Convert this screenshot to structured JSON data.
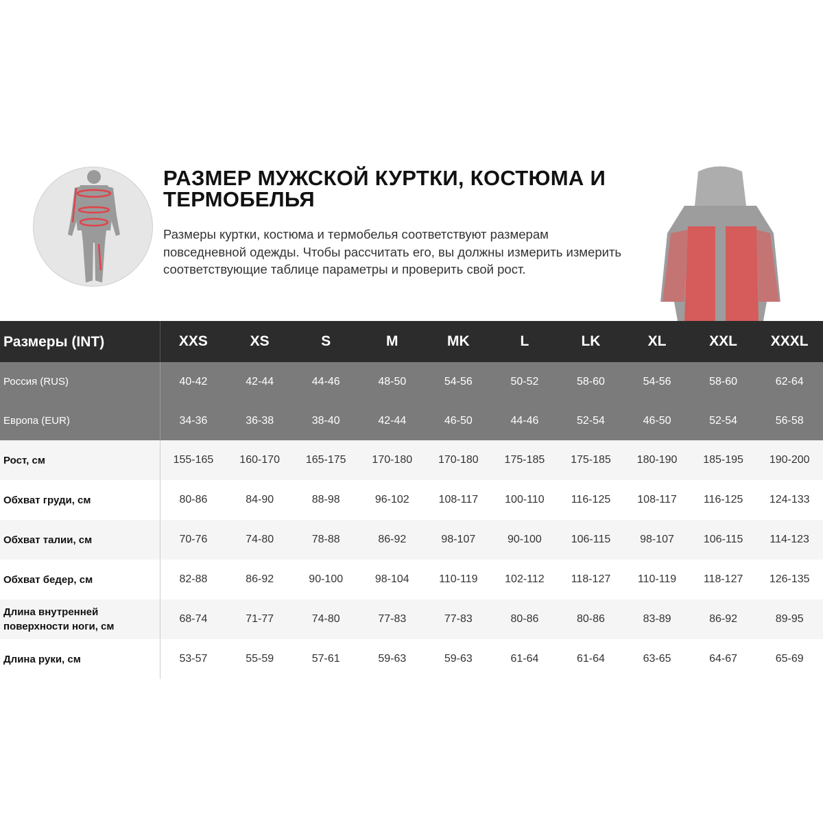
{
  "header": {
    "title": "РАЗМЕР МУЖСКОЙ КУРТКИ, КОСТЮМА И ТЕРМОБЕЛЬЯ",
    "description": "Размеры куртки, костюма и термобелья соответствуют размерам повседневной одежды. Чтобы рассчитать его, вы должны измерить измерить соответствующие таблице параметры и проверить свой рост."
  },
  "colors": {
    "header_bg": "#2c2c2c",
    "region_bg": "#7b7b7b",
    "accent": "#d9534f"
  },
  "table": {
    "corner": "Размеры (INT)",
    "sizes": [
      "XXS",
      "XS",
      "S",
      "M",
      "MK",
      "L",
      "LK",
      "XL",
      "XXL",
      "XXXL"
    ],
    "region_rows": [
      {
        "label": "Россия (RUS)",
        "values": [
          "40-42",
          "42-44",
          "44-46",
          "48-50",
          "54-56",
          "50-52",
          "58-60",
          "54-56",
          "58-60",
          "62-64"
        ]
      },
      {
        "label": "Европа (EUR)",
        "values": [
          "34-36",
          "36-38",
          "38-40",
          "42-44",
          "46-50",
          "44-46",
          "52-54",
          "46-50",
          "52-54",
          "56-58"
        ]
      }
    ],
    "rows": [
      {
        "label": "Рост, см",
        "values": [
          "155-165",
          "160-170",
          "165-175",
          "170-180",
          "170-180",
          "175-185",
          "175-185",
          "180-190",
          "185-195",
          "190-200"
        ]
      },
      {
        "label": "Обхват груди, см",
        "values": [
          "80-86",
          "84-90",
          "88-98",
          "96-102",
          "108-117",
          "100-110",
          "116-125",
          "108-117",
          "116-125",
          "124-133"
        ]
      },
      {
        "label": "Обхват талии, см",
        "values": [
          "70-76",
          "74-80",
          "78-88",
          "86-92",
          "98-107",
          "90-100",
          "106-115",
          "98-107",
          "106-115",
          "114-123"
        ]
      },
      {
        "label": "Обхват бедер, см",
        "values": [
          "82-88",
          "86-92",
          "90-100",
          "98-104",
          "110-119",
          "102-112",
          "118-127",
          "110-119",
          "118-127",
          "126-135"
        ]
      },
      {
        "label": "Длина внутренней поверхности ноги, см",
        "values": [
          "68-74",
          "71-77",
          "74-80",
          "77-83",
          "77-83",
          "80-86",
          "80-86",
          "83-89",
          "86-92",
          "89-95"
        ]
      },
      {
        "label": "Длина руки, см",
        "values": [
          "53-57",
          "55-59",
          "57-61",
          "59-63",
          "59-63",
          "61-64",
          "61-64",
          "63-65",
          "64-67",
          "65-69"
        ]
      }
    ]
  }
}
